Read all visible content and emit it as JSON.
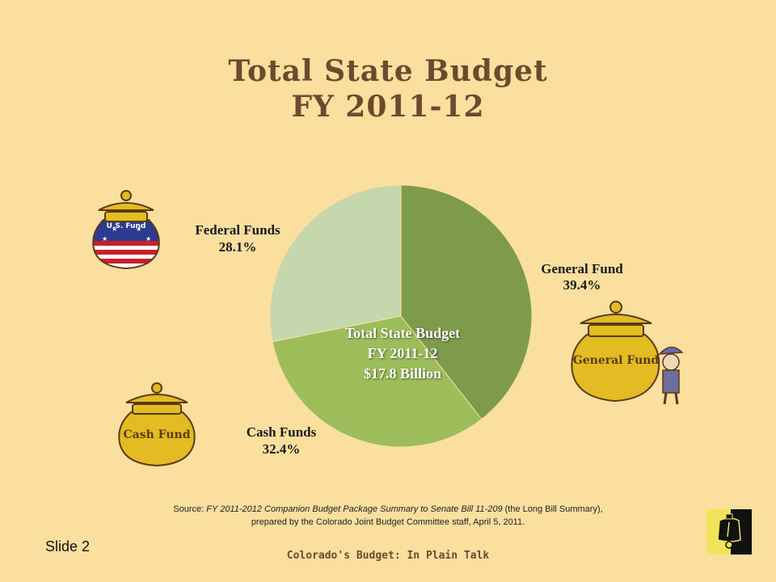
{
  "header": {
    "title_line1": "Total State Budget",
    "title_line2": "FY 2011-12"
  },
  "chart_data": {
    "type": "pie",
    "slices": [
      {
        "label": "General Fund",
        "value": 39.4,
        "value_text": "39.4%",
        "color": "#7e9b4c"
      },
      {
        "label": "Cash Funds",
        "value": 32.4,
        "value_text": "32.4%",
        "color": "#9dbd5b"
      },
      {
        "label": "Federal Funds",
        "value": 28.1,
        "value_text": "28.1%",
        "color": "#c6d6ad"
      }
    ],
    "center_text": [
      "Total State Budget",
      "FY 2011-12",
      "$17.8 Billion"
    ]
  },
  "jars": {
    "federal": "U.S. Fund",
    "general": "General Fund",
    "cash": "Cash Fund"
  },
  "source": {
    "prefix": "Source: ",
    "title": "FY 2011-2012 Companion Budget Package Summary to Senate Bill 11-209",
    "suffix": " (the Long Bill Summary),",
    "line2": "prepared by the Colorado Joint Budget Committee staff, April 5, 2011."
  },
  "slide_label": "Slide 2",
  "footer": "Colorado's Budget: In Plain Talk",
  "colors": {
    "background": "#fadf9f",
    "title": "#6b4a2e",
    "jar_gold": "#e2bc22"
  }
}
